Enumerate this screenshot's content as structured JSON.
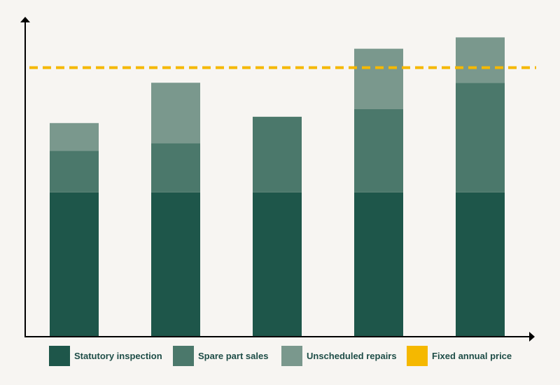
{
  "chart_data": {
    "type": "bar",
    "stacked": true,
    "categories": [
      "",
      "",
      "",
      "",
      ""
    ],
    "series": [
      {
        "name": "Statutory inspection",
        "color": "#1e564a",
        "values": [
          57,
          57,
          57,
          57,
          57
        ]
      },
      {
        "name": "Spare part sales",
        "color": "#4b786b",
        "values": [
          16.5,
          19.5,
          30,
          33,
          43.5
        ]
      },
      {
        "name": "Unscheduled repairs",
        "color": "#7a988d",
        "values": [
          11,
          24,
          0,
          24,
          18
        ]
      }
    ],
    "reference_line": {
      "name": "Fixed annual price",
      "color": "#f5b800",
      "value": 106.5,
      "style": "dashed"
    },
    "ylim": [
      0,
      125
    ],
    "title": "",
    "xlabel": "",
    "ylabel": "",
    "grid": false,
    "axis_tick_labels": false,
    "legend": "bottom"
  }
}
